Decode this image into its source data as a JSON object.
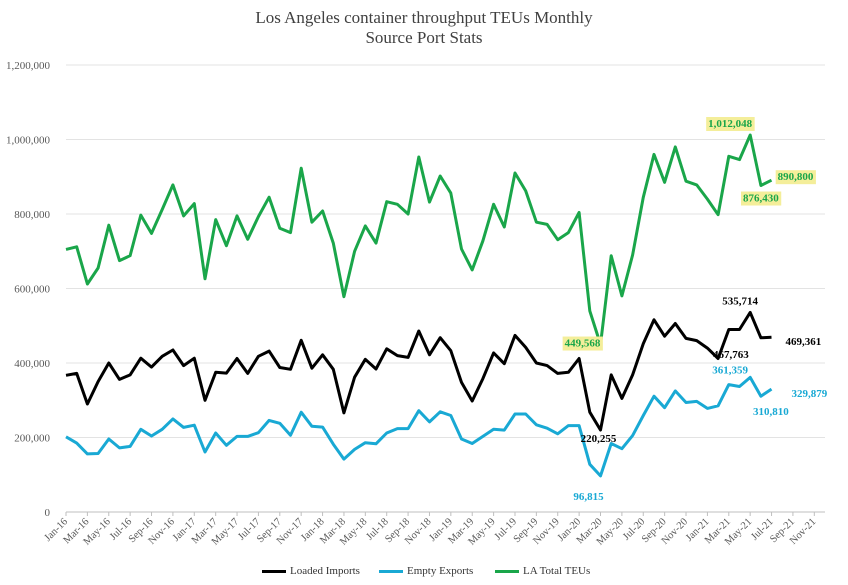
{
  "chart_data": {
    "type": "line",
    "title": "Los Angeles container throughput TEUs Monthly",
    "subtitle": "Source Port Stats",
    "ylim": [
      0,
      1200000
    ],
    "yticks": [
      "0",
      "200,000",
      "400,000",
      "600,000",
      "800,000",
      "1,000,000",
      "1,200,000"
    ],
    "ytick_values": [
      0,
      200000,
      400000,
      600000,
      800000,
      1000000,
      1200000
    ],
    "x_categories": [
      "Jan-16",
      "Feb-16",
      "Mar-16",
      "Apr-16",
      "May-16",
      "Jun-16",
      "Jul-16",
      "Aug-16",
      "Sep-16",
      "Oct-16",
      "Nov-16",
      "Dec-16",
      "Jan-17",
      "Feb-17",
      "Mar-17",
      "Apr-17",
      "May-17",
      "Jun-17",
      "Jul-17",
      "Aug-17",
      "Sep-17",
      "Oct-17",
      "Nov-17",
      "Dec-17",
      "Jan-18",
      "Feb-18",
      "Mar-18",
      "Apr-18",
      "May-18",
      "Jun-18",
      "Jul-18",
      "Aug-18",
      "Sep-18",
      "Oct-18",
      "Nov-18",
      "Dec-18",
      "Jan-19",
      "Feb-19",
      "Mar-19",
      "Apr-19",
      "May-19",
      "Jun-19",
      "Jul-19",
      "Aug-19",
      "Sep-19",
      "Oct-19",
      "Nov-19",
      "Dec-19",
      "Jan-20",
      "Feb-20",
      "Mar-20",
      "Apr-20",
      "May-20",
      "Jun-20",
      "Jul-20",
      "Aug-20",
      "Sep-20",
      "Oct-20",
      "Nov-20",
      "Dec-20",
      "Jan-21",
      "Feb-21",
      "Mar-21",
      "Apr-21",
      "May-21",
      "Jun-21",
      "Jul-21",
      "Aug-21",
      "Sep-21",
      "Oct-21",
      "Nov-21",
      "Dec-21"
    ],
    "x_tick_labels": [
      "Jan-16",
      "Mar-16",
      "May-16",
      "Jul-16",
      "Sep-16",
      "Nov-16",
      "Jan-17",
      "Mar-17",
      "May-17",
      "Jul-17",
      "Sep-17",
      "Nov-17",
      "Jan-18",
      "Mar-18",
      "May-18",
      "Jul-18",
      "Sep-18",
      "Nov-18",
      "Jan-19",
      "Mar-19",
      "May-19",
      "Jul-19",
      "Sep-19",
      "Nov-19",
      "Jan-20",
      "Mar-20",
      "May-20",
      "Jul-20",
      "Sep-20",
      "Nov-20",
      "Jan-21",
      "Mar-21",
      "May-21",
      "Jul-21",
      "Sep-21",
      "Nov-21"
    ],
    "series": [
      {
        "name": "LA Total TEUs",
        "color": "#1aa64a",
        "values": [
          705000,
          712000,
          612000,
          655000,
          770000,
          675000,
          688000,
          797000,
          748000,
          812000,
          878000,
          795000,
          828000,
          626000,
          785000,
          715000,
          795000,
          732000,
          793000,
          845000,
          762000,
          750000,
          923000,
          778000,
          808000,
          722000,
          578000,
          700000,
          768000,
          722000,
          833000,
          826000,
          800000,
          953000,
          832000,
          902000,
          856000,
          706000,
          650000,
          728000,
          826000,
          765000,
          910000,
          862000,
          778000,
          772000,
          731000,
          750000,
          804000,
          540000,
          449568,
          688000,
          580000,
          690000,
          845000,
          960000,
          885000,
          980000,
          888000,
          878000,
          840000,
          798000,
          955000,
          946000,
          1012048,
          876430,
          890800
        ]
      },
      {
        "name": "Loaded Imports",
        "color": "#000000",
        "values": [
          367000,
          372000,
          290000,
          350000,
          400000,
          356000,
          368000,
          413000,
          389000,
          418000,
          435000,
          393000,
          413000,
          300000,
          375000,
          373000,
          412000,
          372000,
          418000,
          432000,
          388000,
          383000,
          461000,
          386000,
          422000,
          383000,
          266000,
          362000,
          410000,
          384000,
          438000,
          420000,
          415000,
          486000,
          422000,
          468000,
          433000,
          348000,
          298000,
          358000,
          427000,
          398000,
          474000,
          442000,
          400000,
          393000,
          372000,
          375000,
          412000,
          268000,
          220255,
          368000,
          305000,
          368000,
          452000,
          516000,
          472000,
          506000,
          466000,
          460000,
          440000,
          412000,
          490000,
          490000,
          535714,
          467763,
          469361
        ]
      },
      {
        "name": "Empty Exports",
        "color": "#19a9d4",
        "values": [
          202000,
          185000,
          156000,
          157000,
          196000,
          172000,
          176000,
          222000,
          204000,
          222000,
          250000,
          227000,
          233000,
          161000,
          212000,
          179000,
          203000,
          203000,
          213000,
          246000,
          238000,
          206000,
          268000,
          230000,
          228000,
          182000,
          142000,
          168000,
          186000,
          183000,
          212000,
          224000,
          224000,
          272000,
          242000,
          269000,
          259000,
          196000,
          184000,
          203000,
          222000,
          220000,
          263000,
          263000,
          234000,
          225000,
          210000,
          232000,
          232000,
          128000,
          96815,
          184000,
          170000,
          205000,
          259000,
          311000,
          280000,
          325000,
          294000,
          297000,
          278000,
          285000,
          342000,
          337000,
          361359,
          310810,
          329879
        ]
      }
    ],
    "annotations": [
      {
        "series": "LA Total TEUs",
        "index": 64,
        "text": "1,012,048",
        "highlight": true,
        "color": "#1aa64a"
      },
      {
        "series": "LA Total TEUs",
        "index": 65,
        "text": "876,430",
        "highlight": true,
        "color": "#1aa64a"
      },
      {
        "series": "LA Total TEUs",
        "index": 66,
        "text": "890,800",
        "highlight": true,
        "color": "#1aa64a"
      },
      {
        "series": "LA Total TEUs",
        "index": 50,
        "text": "449,568",
        "highlight": true,
        "color": "#1aa64a"
      },
      {
        "series": "Loaded Imports",
        "index": 64,
        "text": "535,714",
        "highlight": false,
        "color": "#000000"
      },
      {
        "series": "Loaded Imports",
        "index": 65,
        "text": "467,763",
        "highlight": false,
        "color": "#000000"
      },
      {
        "series": "Loaded Imports",
        "index": 66,
        "text": "469,361",
        "highlight": false,
        "color": "#000000"
      },
      {
        "series": "Loaded Imports",
        "index": 50,
        "text": "220,255",
        "highlight": false,
        "color": "#000000"
      },
      {
        "series": "Empty Exports",
        "index": 64,
        "text": "361,359",
        "highlight": false,
        "color": "#19a9d4"
      },
      {
        "series": "Empty Exports",
        "index": 65,
        "text": "310,810",
        "highlight": false,
        "color": "#19a9d4"
      },
      {
        "series": "Empty Exports",
        "index": 66,
        "text": "329,879",
        "highlight": false,
        "color": "#19a9d4"
      },
      {
        "series": "Empty Exports",
        "index": 50,
        "text": "96,815",
        "highlight": false,
        "color": "#19a9d4"
      }
    ],
    "legend": [
      "Loaded Imports",
      "Empty Exports",
      "LA Total TEUs"
    ],
    "legend_position": "bottom",
    "grid": true
  }
}
